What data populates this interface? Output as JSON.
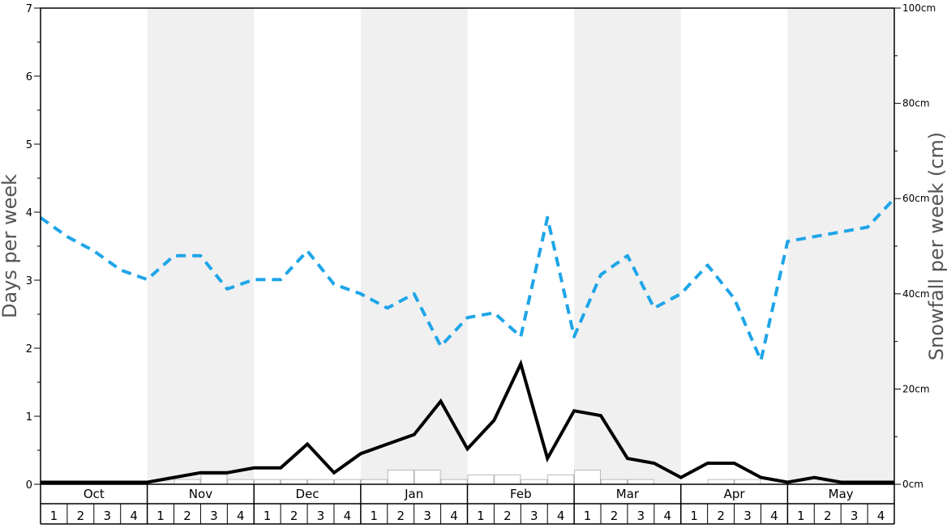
{
  "chart_data": {
    "type": "line",
    "ylabel": "Days per week",
    "ylabel_right": "Snowfall per week (cm)",
    "ylim": [
      0,
      7
    ],
    "ylim_right": [
      0,
      100
    ],
    "left_ticks": [
      "0",
      "1",
      "2",
      "3",
      "4",
      "5",
      "6",
      "7"
    ],
    "right_ticks": [
      "0cm",
      "20cm",
      "40cm",
      "60cm",
      "80cm",
      "100cm"
    ],
    "months": [
      "Oct",
      "Nov",
      "Dec",
      "Jan",
      "Feb",
      "Mar",
      "Apr",
      "May"
    ],
    "week_labels": [
      "1",
      "2",
      "3",
      "4"
    ],
    "colors": {
      "band": "#f0f0f0",
      "snowfall": "#1ea5e8",
      "days": "#000000",
      "bars": "#ffffff",
      "bar_stroke": "#aaaaaa"
    },
    "series": [
      {
        "key": "days_line",
        "axis": "left",
        "style": "solid",
        "values": [
          0.03,
          0.03,
          0.03,
          0.03,
          0.03,
          0.1,
          0.17,
          0.17,
          0.24,
          0.24,
          0.59,
          0.17,
          0.45,
          0.59,
          0.73,
          1.22,
          0.52,
          0.94,
          1.77,
          0.38,
          1.08,
          1.01,
          0.38,
          0.31,
          0.1,
          0.31,
          0.31,
          0.1,
          0.03,
          0.1,
          0.03,
          0.03,
          0.03
        ]
      },
      {
        "key": "snowfall_line",
        "axis": "right",
        "style": "dashed",
        "values": [
          56,
          52,
          49,
          45,
          43,
          48,
          48,
          41,
          43,
          43,
          49,
          42,
          40,
          37,
          40,
          29,
          35,
          36,
          31,
          56,
          31,
          44,
          48,
          37,
          40,
          46,
          39,
          26,
          51,
          52,
          53,
          54,
          60
        ]
      },
      {
        "key": "weekly_bars",
        "axis": "left",
        "style": "bars",
        "values": [
          0.0,
          0.0,
          0.0,
          0.0,
          0.0,
          0.07,
          0.14,
          0.07,
          0.07,
          0.07,
          0.07,
          0.07,
          0.07,
          0.21,
          0.21,
          0.07,
          0.14,
          0.14,
          0.07,
          0.14,
          0.21,
          0.07,
          0.07,
          0.0,
          0.0,
          0.07,
          0.07,
          0.0,
          0.0,
          0.0,
          0.0,
          0.0
        ]
      }
    ]
  }
}
